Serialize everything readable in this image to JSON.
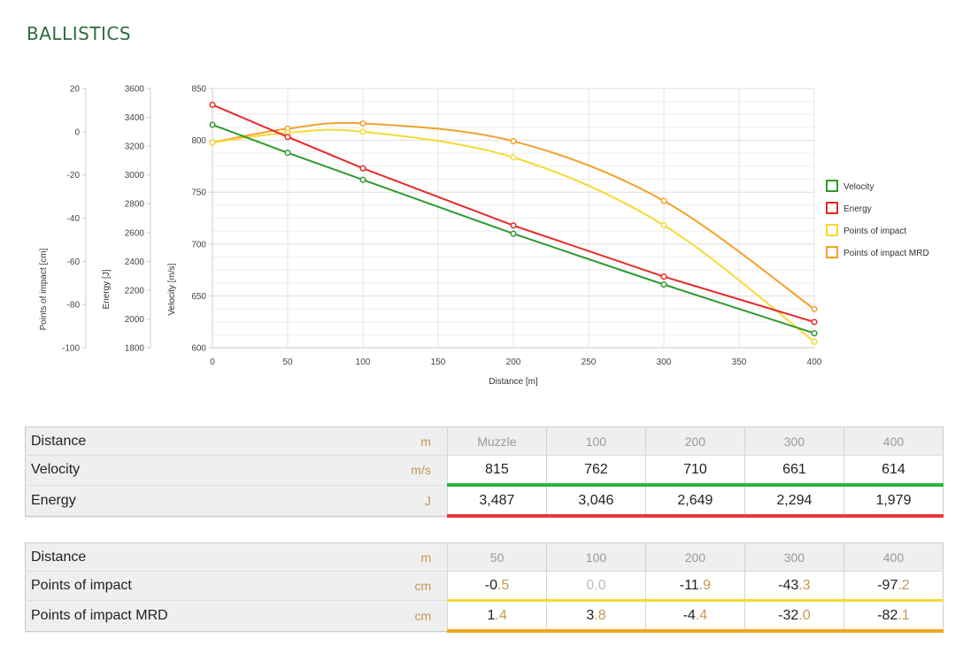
{
  "page_title": "BALLISTICS",
  "chart_data": {
    "type": "line",
    "x": [
      0,
      50,
      100,
      200,
      300,
      400
    ],
    "xlabel": "Distance [m]",
    "xlim": [
      0,
      400
    ],
    "xticks": [
      0,
      50,
      100,
      150,
      200,
      250,
      300,
      350,
      400
    ],
    "grid": true,
    "legend_position": "right",
    "axes": [
      {
        "id": "poi",
        "label": "Points of impact [cm]",
        "range": [
          -100,
          20
        ],
        "ticks": [
          20,
          0,
          -20,
          -40,
          -60,
          -80,
          -100
        ]
      },
      {
        "id": "energy",
        "label": "Energy [J]",
        "range": [
          1800,
          3600
        ],
        "ticks": [
          3600,
          3400,
          3200,
          3000,
          2800,
          2600,
          2400,
          2200,
          2000,
          1800
        ]
      },
      {
        "id": "velocity",
        "label": "Velocity [m/s]",
        "range": [
          600,
          850
        ],
        "ticks": [
          850,
          800,
          750,
          700,
          650,
          600
        ]
      }
    ],
    "series": [
      {
        "name": "Velocity",
        "axis": "velocity",
        "color": "#2d9a2f",
        "x": [
          0,
          50,
          100,
          200,
          300,
          400
        ],
        "values": [
          815,
          788,
          762,
          710,
          661,
          614
        ],
        "smooth": false
      },
      {
        "name": "Energy",
        "axis": "energy",
        "color": "#e8292a",
        "x": [
          0,
          50,
          100,
          200,
          300,
          400
        ],
        "values": [
          3487,
          3264,
          3046,
          2649,
          2294,
          1979
        ],
        "smooth": false
      },
      {
        "name": "Points of impact",
        "axis": "poi",
        "color": "#f7d935",
        "x": [
          0,
          50,
          100,
          200,
          300,
          400
        ],
        "values": [
          -5,
          -0.5,
          0.0,
          -11.9,
          -43.3,
          -97.2
        ],
        "smooth": true
      },
      {
        "name": "Points of impact MRD",
        "axis": "poi",
        "color": "#f2a12a",
        "x": [
          0,
          50,
          100,
          200,
          300,
          400
        ],
        "values": [
          -5,
          1.4,
          3.8,
          -4.4,
          -32.0,
          -82.1
        ],
        "smooth": true
      }
    ]
  },
  "table1": {
    "rows": [
      {
        "label": "Distance",
        "unit": "m",
        "values": [
          "Muzzle",
          "100",
          "200",
          "300",
          "400"
        ]
      },
      {
        "label": "Velocity",
        "unit": "m/s",
        "values": [
          "815",
          "762",
          "710",
          "661",
          "614"
        ]
      },
      {
        "label": "Energy",
        "unit": "J",
        "values": [
          "3,487",
          "3,046",
          "2,649",
          "2,294",
          "1,979"
        ]
      }
    ]
  },
  "table2": {
    "rows": [
      {
        "label": "Distance",
        "unit": "m",
        "values": [
          "50",
          "100",
          "200",
          "300",
          "400"
        ]
      },
      {
        "label": "Points of impact",
        "unit": "cm",
        "values": [
          [
            "-0",
            ".5"
          ],
          [
            "0",
            ".0"
          ],
          [
            "-11",
            ".9"
          ],
          [
            "-43",
            ".3"
          ],
          [
            "-97",
            ".2"
          ]
        ]
      },
      {
        "label": "Points of impact MRD",
        "unit": "cm",
        "values": [
          [
            "1",
            ".4"
          ],
          [
            "3",
            ".8"
          ],
          [
            "-4",
            ".4"
          ],
          [
            "-32",
            ".0"
          ],
          [
            "-82",
            ".1"
          ]
        ]
      }
    ]
  }
}
